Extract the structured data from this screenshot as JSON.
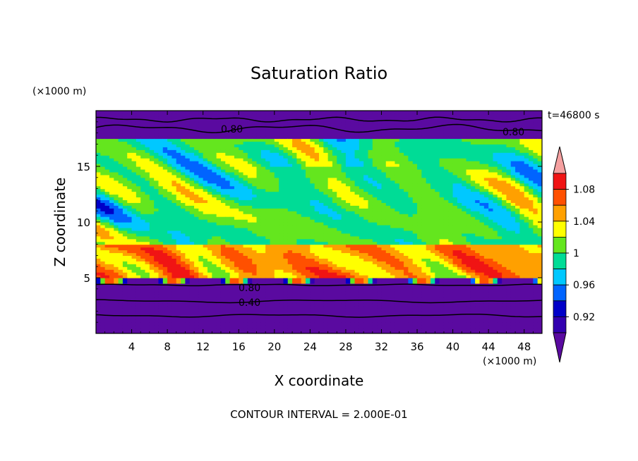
{
  "chart_data": {
    "type": "heatmap",
    "title": "Saturation Ratio",
    "xlabel": "X coordinate",
    "ylabel": "Z coordinate",
    "x_unit": "(×1000 m)",
    "y_unit": "(×1000 m)",
    "time_label": "t=46800 s",
    "footer": "CONTOUR INTERVAL = 2.000E-01",
    "xlim": [
      0,
      50
    ],
    "ylim": [
      0,
      20
    ],
    "x_ticks": [
      4,
      8,
      12,
      16,
      20,
      24,
      28,
      32,
      36,
      40,
      44,
      48
    ],
    "y_ticks": [
      5,
      10,
      15
    ],
    "grid": false,
    "colorbar": {
      "labels": [
        "1.08",
        "1.04",
        "1",
        "0.96",
        "0.92"
      ],
      "levels": [
        0.9,
        0.92,
        0.94,
        0.96,
        0.98,
        1.0,
        1.02,
        1.04,
        1.06,
        1.08,
        1.1
      ],
      "colors": [
        "#5a0aa0",
        "#3200b0",
        "#0000c8",
        "#0064ff",
        "#00c8ff",
        "#00dc96",
        "#64e61e",
        "#ffff00",
        "#ffa000",
        "#ff5000",
        "#f01414",
        "#f5a0a0"
      ]
    },
    "contour_labels": [
      "0.80",
      "0.80",
      "0.80",
      "0.40"
    ],
    "layers": [
      {
        "z_range": [
          0,
          4.4
        ],
        "value": 0.4
      },
      {
        "z_range": [
          4.4,
          5.0
        ],
        "value": 0.9
      },
      {
        "z_range": [
          5.0,
          8.0
        ],
        "value": 1.05
      },
      {
        "z_range": [
          8.0,
          17.5
        ],
        "value": 1.0
      },
      {
        "z_range": [
          17.5,
          20
        ],
        "value": 0.8
      }
    ]
  }
}
